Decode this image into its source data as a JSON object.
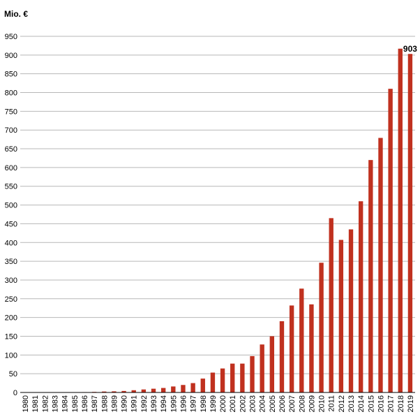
{
  "chart_data": {
    "type": "bar",
    "unit_label": "Mio. €",
    "categories": [
      "1980",
      "1981",
      "1982",
      "1983",
      "1984",
      "1985",
      "1986",
      "1987",
      "1988",
      "1989",
      "1990",
      "1991",
      "1992",
      "1993",
      "1994",
      "1995",
      "1996",
      "1997",
      "1998",
      "1999",
      "2000",
      "2001",
      "2002",
      "2003",
      "2004",
      "2005",
      "2006",
      "2007",
      "2008",
      "2009",
      "2010",
      "2011",
      "2012",
      "2013",
      "2014",
      "2015",
      "2016",
      "2017",
      "2018",
      "2019"
    ],
    "values": [
      0.3,
      0.3,
      0.4,
      0.5,
      0.6,
      0.7,
      1,
      1.5,
      2.5,
      3,
      4,
      6,
      8,
      10,
      12,
      16,
      20,
      25,
      37,
      53,
      64,
      77,
      77,
      97,
      128,
      150,
      190,
      232,
      277,
      235,
      346,
      465,
      407,
      435,
      510,
      620,
      679,
      810,
      917,
      903
    ],
    "yticks": [
      0,
      50,
      100,
      150,
      200,
      250,
      300,
      350,
      400,
      450,
      500,
      550,
      600,
      650,
      700,
      750,
      800,
      850,
      900,
      950
    ],
    "ylim": [
      0,
      950
    ],
    "grid": true,
    "bar_color": "#c0311f",
    "annotation": {
      "category": "2019",
      "text": "903"
    }
  }
}
